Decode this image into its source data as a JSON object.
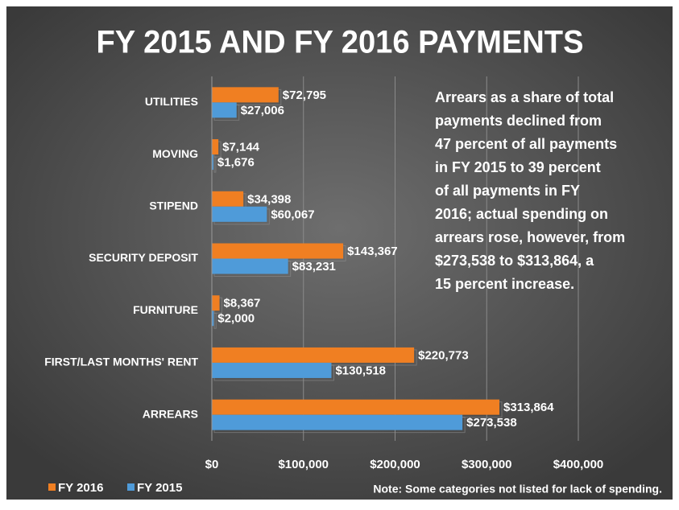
{
  "chart_data": {
    "type": "bar",
    "orientation": "horizontal",
    "title": "FY 2015 AND FY 2016 PAYMENTS",
    "categories": [
      "UTILITIES",
      "MOVING",
      "STIPEND",
      "SECURITY DEPOSIT",
      "FURNITURE",
      "FIRST/LAST MONTHS' RENT",
      "ARREARS"
    ],
    "series": [
      {
        "name": "FY 2016",
        "color": "#f07f22",
        "values": [
          72795,
          7144,
          34398,
          143367,
          8367,
          220773,
          313864
        ],
        "value_labels": [
          "$72,795",
          "$7,144",
          "$34,398",
          "$143,367",
          "$8,367",
          "$220,773",
          "$313,864"
        ]
      },
      {
        "name": "FY 2015",
        "color": "#4f9bd9",
        "values": [
          27006,
          1676,
          60067,
          83231,
          2000,
          130518,
          273538
        ],
        "value_labels": [
          "$27,006",
          "$1,676",
          "$60,067",
          "$83,231",
          "$2,000",
          "$130,518",
          "$273,538"
        ]
      }
    ],
    "xlim": [
      0,
      400000
    ],
    "xticks": [
      {
        "value": 0,
        "label": "$0"
      },
      {
        "value": 100000,
        "label": "$100,000"
      },
      {
        "value": 200000,
        "label": "$200,000"
      },
      {
        "value": 300000,
        "label": "$300,000"
      },
      {
        "value": 400000,
        "label": "$400,000"
      }
    ],
    "grid": true,
    "legend": "bottom-left",
    "annotation": [
      "Arrears as a share of total",
      "payments declined from",
      "47 percent of all payments",
      "in FY 2015 to 39 percent",
      "of all payments in FY",
      "2016; actual spending on",
      "arrears rose, however, from",
      "$273,538 to $313,864, a",
      "15 percent increase."
    ],
    "note": "Note: Some categories not listed for lack of spending."
  }
}
